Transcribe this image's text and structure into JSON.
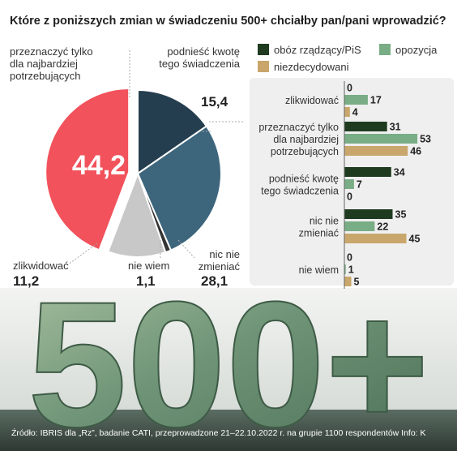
{
  "title": "Które z poniższych zmian w świadczeniu 500+ chciałby pan/pani wprowadzić?",
  "source": "Źródło: IBRIS dla „Rz”, badanie CATI, przeprowadzone 21–22.10.2022 r. na grupie 1100 respondentów Info: K",
  "background_text": "500+",
  "colors": {
    "pis": "#1e3b1f",
    "opozycja": "#79ad85",
    "niezdecydowani": "#c9a66b",
    "pie_red": "#f1525c",
    "pie_navy": "#253e4f",
    "pie_blue": "#3d667d",
    "pie_gray": "#c8c8c8",
    "pie_dark": "#333333"
  },
  "chart_data": [
    {
      "type": "pie",
      "slices": [
        {
          "label": "przeznaczyć tylko dla najbardziej potrzebujących",
          "value": 44.2,
          "value_text": "44,2",
          "color": "#f1525c"
        },
        {
          "label": "podnieść kwotę tego świadczenia",
          "value": 15.4,
          "value_text": "15,4",
          "color": "#253e4f"
        },
        {
          "label": "nic nie zmieniać",
          "value": 28.1,
          "value_text": "28,1",
          "color": "#3d667d"
        },
        {
          "label": "nie wiem",
          "value": 1.1,
          "value_text": "1,1",
          "color": "#333333"
        },
        {
          "label": "zlikwidować",
          "value": 11.2,
          "value_text": "11,2",
          "color": "#c8c8c8"
        }
      ]
    },
    {
      "type": "bar",
      "orientation": "horizontal",
      "legend": [
        "obóz rządzący/PiS",
        "opozycja",
        "niezdecydowani"
      ],
      "legend_position": "top",
      "categories": [
        "zlikwidować",
        "przeznaczyć tylko dla najbardziej potrzebujących",
        "podnieść kwotę tego świadczenia",
        "nic nie zmieniać",
        "nie wiem"
      ],
      "series": [
        {
          "name": "obóz rządzący/PiS",
          "values": [
            0,
            31,
            34,
            35,
            0
          ]
        },
        {
          "name": "opozycja",
          "values": [
            17,
            53,
            7,
            22,
            1
          ]
        },
        {
          "name": "niezdecydowani",
          "values": [
            4,
            46,
            0,
            45,
            5
          ]
        }
      ]
    }
  ]
}
